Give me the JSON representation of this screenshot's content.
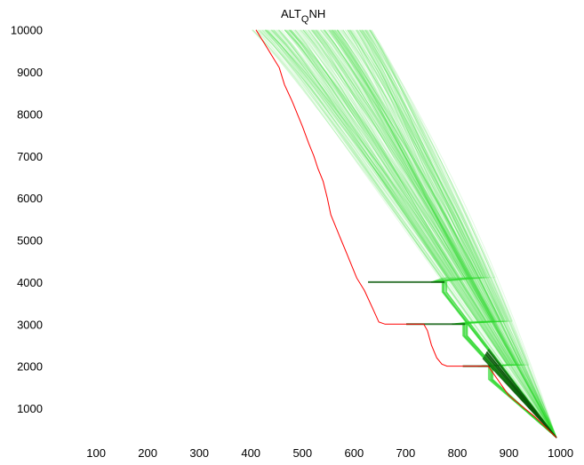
{
  "chart_data": {
    "type": "line",
    "title_main": "ALT",
    "title_sub": "Q",
    "title_tail": "NH",
    "xlabel": "",
    "ylabel": "",
    "xlim": [
      0,
      1000
    ],
    "ylim": [
      250,
      10000
    ],
    "x_ticks": [
      100,
      200,
      300,
      400,
      500,
      600,
      700,
      800,
      900,
      1000
    ],
    "y_ticks": [
      1000,
      2000,
      3000,
      4000,
      5000,
      6000,
      7000,
      8000,
      9000,
      10000
    ],
    "grid": false,
    "legend": "none",
    "colors": {
      "highlight": "#ff0000",
      "trajectories": "#33dd33",
      "dense": "#0a5a0a"
    },
    "highlight_series": {
      "x": [
        410,
        425,
        440,
        455,
        465,
        480,
        490,
        500,
        512,
        522,
        530,
        540,
        548,
        555,
        565,
        575,
        585,
        595,
        605,
        620,
        635,
        648,
        660,
        700,
        735,
        742,
        750,
        760,
        770,
        780,
        820,
        860,
        900,
        950,
        992
      ],
      "y": [
        10000,
        9700,
        9400,
        9100,
        8700,
        8300,
        8000,
        7700,
        7300,
        7000,
        6700,
        6400,
        6000,
        5600,
        5300,
        5000,
        4700,
        4400,
        4100,
        3800,
        3400,
        3050,
        3000,
        3000,
        3000,
        2850,
        2500,
        2200,
        2050,
        2000,
        2000,
        2000,
        1300,
        800,
        300
      ]
    },
    "trajectory_bundle": {
      "count": 260,
      "top_x_range": [
        400,
        640
      ],
      "bottom_point": [
        992,
        300
      ],
      "level_offs": [
        {
          "y": 4000,
          "x_range": [
            600,
            780
          ]
        },
        {
          "y": 3000,
          "x_range": [
            680,
            820
          ]
        },
        {
          "y": 2000,
          "x_range": [
            800,
            870
          ]
        }
      ]
    }
  }
}
